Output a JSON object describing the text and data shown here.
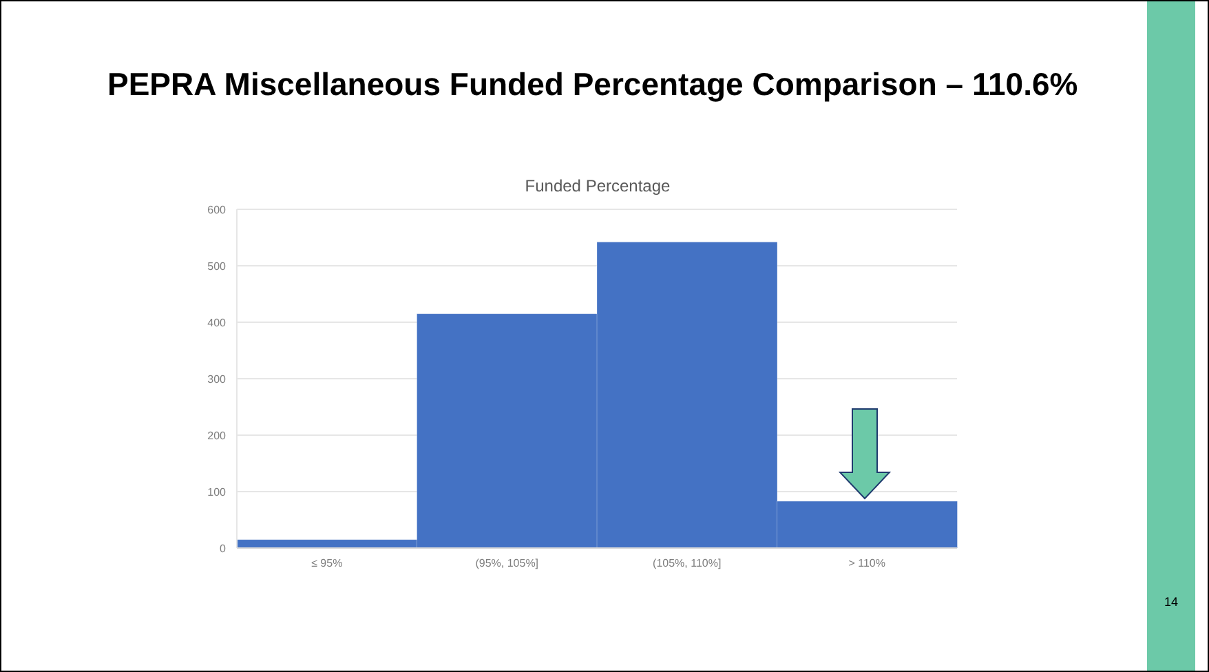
{
  "chart_data": {
    "type": "bar",
    "title": "PEPRA Miscellaneous Funded Percentage Comparison – 110.6%",
    "subtitle": "Funded Percentage",
    "categories": [
      "≤ 95%",
      "(95%, 105%]",
      "(105%, 110%]",
      "> 110%"
    ],
    "values": [
      15,
      415,
      542,
      83
    ],
    "color": "#4472c4",
    "ylim": [
      0,
      600
    ],
    "yticks": [
      0,
      100,
      200,
      300,
      400,
      500,
      600
    ],
    "grid": "y",
    "annotations": [
      "14"
    ]
  }
}
